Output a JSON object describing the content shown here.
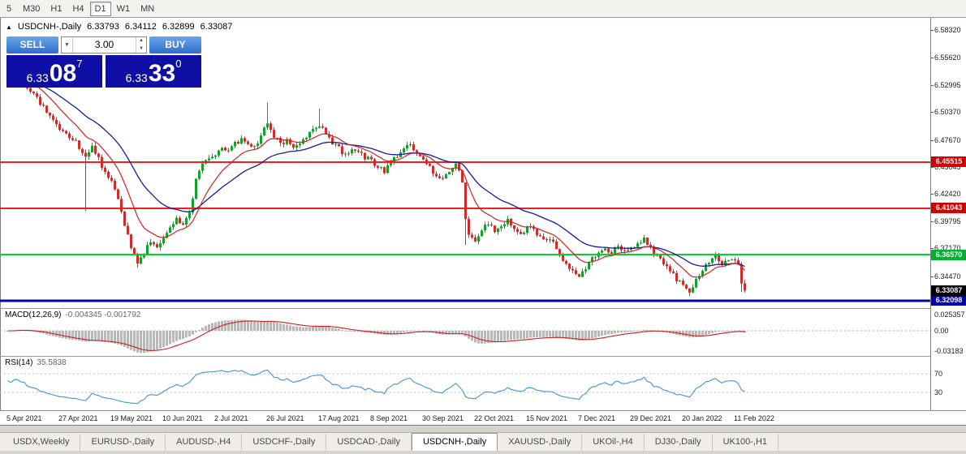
{
  "toolbar": {
    "periods": [
      "5",
      "M30",
      "H1",
      "H4",
      "D1",
      "W1",
      "MN"
    ],
    "active_period": "D1"
  },
  "quote_header": {
    "collapse_icon": "▲",
    "symbol": "USDCNH-,Daily",
    "open": "6.33793",
    "high": "6.34112",
    "low": "6.32899",
    "close": "6.33087"
  },
  "trade_panel": {
    "sell_label": "SELL",
    "buy_label": "BUY",
    "volume": "3.00",
    "dropdown_icon": "▼",
    "spin_up_icon": "▲",
    "spin_down_icon": "▼",
    "sell_price": {
      "prefix": "6.33",
      "big": "08",
      "sup": "7"
    },
    "buy_price": {
      "prefix": "6.33",
      "big": "33",
      "sup": "0"
    }
  },
  "indicators": {
    "macd_label": "MACD(12,26,9)",
    "macd_values": "-0.004345 -0.001792",
    "rsi_label": "RSI(14)",
    "rsi_value": "35.5838"
  },
  "tabs": [
    {
      "label": "USDX,Weekly",
      "active": false
    },
    {
      "label": "EURUSD-,Daily",
      "active": false
    },
    {
      "label": "AUDUSD-,H4",
      "active": false
    },
    {
      "label": "USDCHF-,Daily",
      "active": false
    },
    {
      "label": "USDCAD-,Daily",
      "active": false
    },
    {
      "label": "USDCNH-,Daily",
      "active": true
    },
    {
      "label": "XAUUSD-,Daily",
      "active": false
    },
    {
      "label": "UKOil-,H4",
      "active": false
    },
    {
      "label": "DJ30-,Daily",
      "active": false
    },
    {
      "label": "UK100-,H1",
      "active": false
    }
  ],
  "chart_data": {
    "type": "candlestick",
    "symbol": "USDCNH-",
    "timeframe": "Daily",
    "last_quote": {
      "open": 6.33793,
      "high": 6.34112,
      "low": 6.32899,
      "close": 6.33087
    },
    "price_axis_ticks": [
      "6.58320",
      "6.55620",
      "6.52995",
      "6.50370",
      "6.47670",
      "6.45045",
      "6.42420",
      "6.39795",
      "6.37170",
      "6.34470"
    ],
    "hlines": [
      {
        "price": 6.45515,
        "label": "6.45515",
        "color": "#ef2020",
        "tag_bg": "#d40000",
        "width": 2
      },
      {
        "price": 6.41043,
        "label": "6.41043",
        "color": "#ef2020",
        "tag_bg": "#d40000",
        "width": 2
      },
      {
        "price": 6.3657,
        "label": "6.36570",
        "color": "#00d42e",
        "tag_bg": "#00b22d",
        "width": 2
      },
      {
        "price": 6.32098,
        "label": "6.32098",
        "color": "#0202a8",
        "tag_bg": "#0000b4",
        "width": 3
      }
    ],
    "current_price_tag": {
      "price": 6.33087,
      "label": "6.33087",
      "bg": "#000000"
    },
    "date_labels": [
      "5 Apr 2021",
      "27 Apr 2021",
      "19 May 2021",
      "10 Jun 2021",
      "2 Jul 2021",
      "26 Jul 2021",
      "17 Aug 2021",
      "8 Sep 2021",
      "30 Sep 2021",
      "22 Oct 2021",
      "15 Nov 2021",
      "7 Dec 2021",
      "29 Dec 2021",
      "20 Jan 2022",
      "11 Feb 2022"
    ],
    "bars_per_label": 16,
    "num_bars": 228,
    "anchors": [
      [
        0,
        6.53
      ],
      [
        2,
        6.542
      ],
      [
        5,
        6.534
      ],
      [
        8,
        6.52
      ],
      [
        12,
        6.505
      ],
      [
        16,
        6.488
      ],
      [
        20,
        6.478
      ],
      [
        24,
        6.462
      ],
      [
        26,
        6.471
      ],
      [
        29,
        6.452
      ],
      [
        32,
        6.436
      ],
      [
        34,
        6.42
      ],
      [
        36,
        6.396
      ],
      [
        38,
        6.374
      ],
      [
        40,
        6.358
      ],
      [
        42,
        6.368
      ],
      [
        44,
        6.377
      ],
      [
        46,
        6.371
      ],
      [
        48,
        6.38
      ],
      [
        50,
        6.391
      ],
      [
        52,
        6.4
      ],
      [
        54,
        6.395
      ],
      [
        56,
        6.404
      ],
      [
        58,
        6.438
      ],
      [
        60,
        6.452
      ],
      [
        62,
        6.458
      ],
      [
        64,
        6.462
      ],
      [
        66,
        6.47
      ],
      [
        68,
        6.466
      ],
      [
        70,
        6.473
      ],
      [
        72,
        6.478
      ],
      [
        74,
        6.473
      ],
      [
        76,
        6.469
      ],
      [
        78,
        6.482
      ],
      [
        80,
        6.493
      ],
      [
        82,
        6.481
      ],
      [
        84,
        6.473
      ],
      [
        86,
        6.477
      ],
      [
        88,
        6.47
      ],
      [
        90,
        6.475
      ],
      [
        92,
        6.481
      ],
      [
        94,
        6.487
      ],
      [
        96,
        6.491
      ],
      [
        98,
        6.482
      ],
      [
        100,
        6.474
      ],
      [
        102,
        6.468
      ],
      [
        104,
        6.462
      ],
      [
        106,
        6.47
      ],
      [
        108,
        6.465
      ],
      [
        110,
        6.459
      ],
      [
        112,
        6.457
      ],
      [
        114,
        6.451
      ],
      [
        116,
        6.447
      ],
      [
        118,
        6.456
      ],
      [
        120,
        6.462
      ],
      [
        122,
        6.468
      ],
      [
        124,
        6.473
      ],
      [
        126,
        6.465
      ],
      [
        128,
        6.457
      ],
      [
        130,
        6.449
      ],
      [
        132,
        6.443
      ],
      [
        134,
        6.438
      ],
      [
        136,
        6.445
      ],
      [
        138,
        6.452
      ],
      [
        140,
        6.438
      ],
      [
        141,
        6.402
      ],
      [
        142,
        6.386
      ],
      [
        144,
        6.381
      ],
      [
        146,
        6.39
      ],
      [
        148,
        6.396
      ],
      [
        150,
        6.388
      ],
      [
        152,
        6.392
      ],
      [
        154,
        6.398
      ],
      [
        156,
        6.391
      ],
      [
        158,
        6.386
      ],
      [
        160,
        6.392
      ],
      [
        162,
        6.389
      ],
      [
        164,
        6.383
      ],
      [
        166,
        6.379
      ],
      [
        168,
        6.377
      ],
      [
        170,
        6.367
      ],
      [
        172,
        6.357
      ],
      [
        174,
        6.348
      ],
      [
        176,
        6.344
      ],
      [
        178,
        6.352
      ],
      [
        180,
        6.362
      ],
      [
        182,
        6.368
      ],
      [
        184,
        6.372
      ],
      [
        186,
        6.368
      ],
      [
        188,
        6.374
      ],
      [
        190,
        6.37
      ],
      [
        192,
        6.372
      ],
      [
        194,
        6.376
      ],
      [
        196,
        6.38
      ],
      [
        198,
        6.371
      ],
      [
        200,
        6.363
      ],
      [
        202,
        6.356
      ],
      [
        204,
        6.349
      ],
      [
        206,
        6.342
      ],
      [
        208,
        6.336
      ],
      [
        210,
        6.329
      ],
      [
        212,
        6.341
      ],
      [
        214,
        6.352
      ],
      [
        216,
        6.36
      ],
      [
        218,
        6.363
      ],
      [
        220,
        6.358
      ],
      [
        222,
        6.362
      ],
      [
        224,
        6.36
      ],
      [
        225,
        6.356
      ],
      [
        226,
        6.338
      ],
      [
        227,
        6.3315
      ]
    ],
    "spikes": [
      {
        "i": 2,
        "high": 6.548
      },
      {
        "i": 24,
        "low": 6.408
      },
      {
        "i": 40,
        "low": 6.353
      },
      {
        "i": 80,
        "high": 6.513
      },
      {
        "i": 96,
        "high": 6.507
      },
      {
        "i": 141,
        "low": 6.375
      },
      {
        "i": 210,
        "low": 6.3255
      },
      {
        "i": 226,
        "low": 6.3295
      }
    ],
    "macd": {
      "params": [
        12,
        26,
        9
      ],
      "value": -0.004345,
      "signal": -0.001792,
      "axis_labels": {
        "top": "0.025357",
        "zero": "0.00",
        "bottom": "-0.03183"
      }
    },
    "rsi": {
      "period": 14,
      "value": 35.5838,
      "levels": [
        70,
        30
      ]
    },
    "colors": {
      "up": "#0fa32b",
      "down": "#d22b2b",
      "ma_fast": "#d42020",
      "ma_slow": "#1a1a9e",
      "hist": "#b8b8b8",
      "macd_signal": "#cc1f1f",
      "rsi_line": "#3f96cf"
    }
  }
}
